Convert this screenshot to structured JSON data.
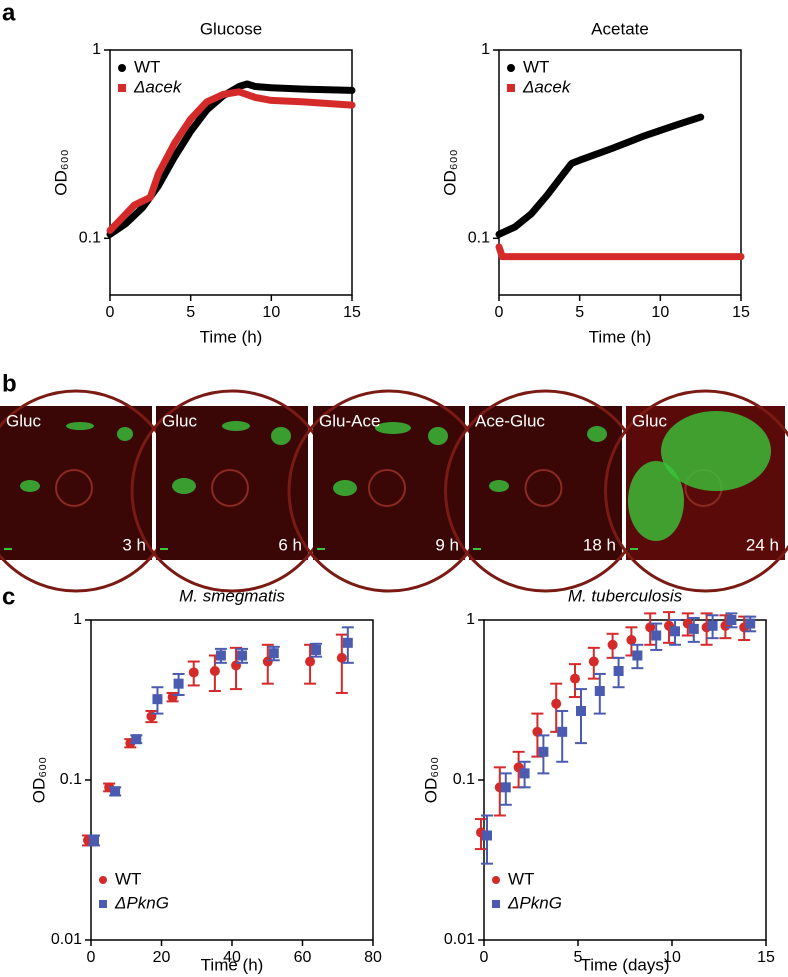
{
  "panel_labels": [
    "a",
    "b",
    "c"
  ],
  "micrographs": [
    {
      "label": "Gluc",
      "time": "3 h"
    },
    {
      "label": "Gluc",
      "time": "6 h"
    },
    {
      "label": "Glu-Ace",
      "time": "9 h"
    },
    {
      "label": "Ace-Gluc",
      "time": "18 h"
    },
    {
      "label": "Gluc",
      "time": "24 h"
    }
  ],
  "chart_data": [
    {
      "type": "line",
      "title": "Glucose",
      "xlabel": "Time (h)",
      "ylabel": "OD₆₀₀",
      "log_y": true,
      "legend": "upper left",
      "xlim": [
        0,
        15
      ],
      "xticks": [
        0,
        5,
        10,
        15
      ],
      "ylim": [
        0.05,
        1
      ],
      "yticks": [
        0.1,
        1
      ],
      "series": [
        {
          "name": "WT",
          "color": "#000000",
          "marker": "circle",
          "x": [
            0,
            1,
            2,
            3,
            4,
            5,
            6,
            7,
            8,
            8.5,
            9,
            10,
            12,
            15
          ],
          "values": [
            0.105,
            0.12,
            0.145,
            0.19,
            0.27,
            0.37,
            0.48,
            0.57,
            0.64,
            0.66,
            0.64,
            0.63,
            0.62,
            0.61
          ]
        },
        {
          "name": "Δacek",
          "color": "#d42a2a",
          "marker": "square",
          "x": [
            0,
            1,
            1.5,
            2.5,
            3,
            4,
            5,
            6,
            7,
            8,
            9,
            10,
            12,
            15
          ],
          "values": [
            0.11,
            0.135,
            0.15,
            0.165,
            0.22,
            0.32,
            0.43,
            0.53,
            0.58,
            0.6,
            0.56,
            0.54,
            0.53,
            0.51
          ]
        }
      ]
    },
    {
      "type": "line",
      "title": "Acetate",
      "xlabel": "Time (h)",
      "ylabel": "OD₆₀₀",
      "log_y": true,
      "legend": "upper left",
      "xlim": [
        0,
        15
      ],
      "xticks": [
        0,
        5,
        10,
        15
      ],
      "ylim": [
        0.05,
        1
      ],
      "yticks": [
        0.1,
        1
      ],
      "series": [
        {
          "name": "WT",
          "color": "#000000",
          "marker": "circle",
          "x": [
            0,
            1,
            2,
            3,
            4,
            4.5,
            5,
            7,
            9,
            11,
            12.5
          ],
          "values": [
            0.105,
            0.115,
            0.135,
            0.17,
            0.22,
            0.25,
            0.26,
            0.3,
            0.35,
            0.4,
            0.44
          ]
        },
        {
          "name": "Δacek",
          "color": "#d42a2a",
          "marker": "square",
          "x": [
            0,
            0.2,
            15
          ],
          "values": [
            0.09,
            0.08,
            0.08
          ]
        }
      ]
    },
    {
      "type": "scatter",
      "title": "M. smegmatis",
      "xlabel": "Time (h)",
      "ylabel": "OD₆₀₀",
      "log_y": true,
      "legend": "lower left",
      "xlim": [
        0,
        80
      ],
      "xticks": [
        0,
        20,
        40,
        60,
        80
      ],
      "ylim": [
        0.01,
        1
      ],
      "yticks": [
        0.01,
        0.1,
        1
      ],
      "series": [
        {
          "name": "WT",
          "color": "#d42a2a",
          "marker": "circle",
          "x": [
            0,
            6,
            12,
            18,
            24,
            30,
            36,
            42,
            51,
            63,
            72
          ],
          "values": [
            0.042,
            0.09,
            0.17,
            0.25,
            0.33,
            0.47,
            0.48,
            0.52,
            0.55,
            0.55,
            0.58
          ],
          "errors": [
            0.003,
            0.005,
            0.01,
            0.02,
            0.02,
            0.08,
            0.12,
            0.15,
            0.15,
            0.15,
            0.23
          ]
        },
        {
          "name": "ΔPknG",
          "color": "#4a5bb0",
          "marker": "square",
          "x": [
            0,
            6,
            12,
            18,
            24,
            36,
            42,
            51,
            63,
            72
          ],
          "values": [
            0.042,
            0.085,
            0.18,
            0.32,
            0.4,
            0.6,
            0.6,
            0.62,
            0.65,
            0.72
          ],
          "errors": [
            0.003,
            0.005,
            0.01,
            0.06,
            0.06,
            0.06,
            0.06,
            0.06,
            0.06,
            0.18
          ]
        }
      ]
    },
    {
      "type": "scatter",
      "title": "M. tuberculosis",
      "xlabel": "Time (days)",
      "ylabel": "OD₆₀₀",
      "log_y": true,
      "legend": "lower left",
      "xlim": [
        0,
        15
      ],
      "xticks": [
        0,
        5,
        10,
        15
      ],
      "ylim": [
        0.01,
        1
      ],
      "yticks": [
        0.01,
        0.1,
        1
      ],
      "series": [
        {
          "name": "WT",
          "color": "#d42a2a",
          "marker": "circle",
          "x": [
            0,
            1,
            2,
            3,
            4,
            5,
            6,
            7,
            8,
            9,
            10,
            11,
            12,
            13,
            14
          ],
          "values": [
            0.047,
            0.09,
            0.12,
            0.2,
            0.3,
            0.43,
            0.55,
            0.7,
            0.75,
            0.9,
            0.92,
            0.95,
            0.9,
            0.92,
            0.9
          ],
          "errors": [
            0.01,
            0.03,
            0.03,
            0.06,
            0.1,
            0.1,
            0.12,
            0.12,
            0.15,
            0.2,
            0.2,
            0.15,
            0.2,
            0.15,
            0.15
          ]
        },
        {
          "name": "ΔPknG",
          "color": "#4a5bb0",
          "marker": "square",
          "x": [
            0,
            1,
            2,
            3,
            4,
            5,
            6,
            7,
            8,
            9,
            10,
            11,
            12,
            13,
            14
          ],
          "values": [
            0.045,
            0.09,
            0.11,
            0.15,
            0.2,
            0.27,
            0.36,
            0.48,
            0.6,
            0.8,
            0.85,
            0.88,
            0.92,
            1.0,
            0.95
          ],
          "errors": [
            0.015,
            0.02,
            0.02,
            0.04,
            0.07,
            0.1,
            0.1,
            0.1,
            0.1,
            0.15,
            0.15,
            0.15,
            0.15,
            0.1,
            0.1
          ]
        }
      ]
    }
  ]
}
